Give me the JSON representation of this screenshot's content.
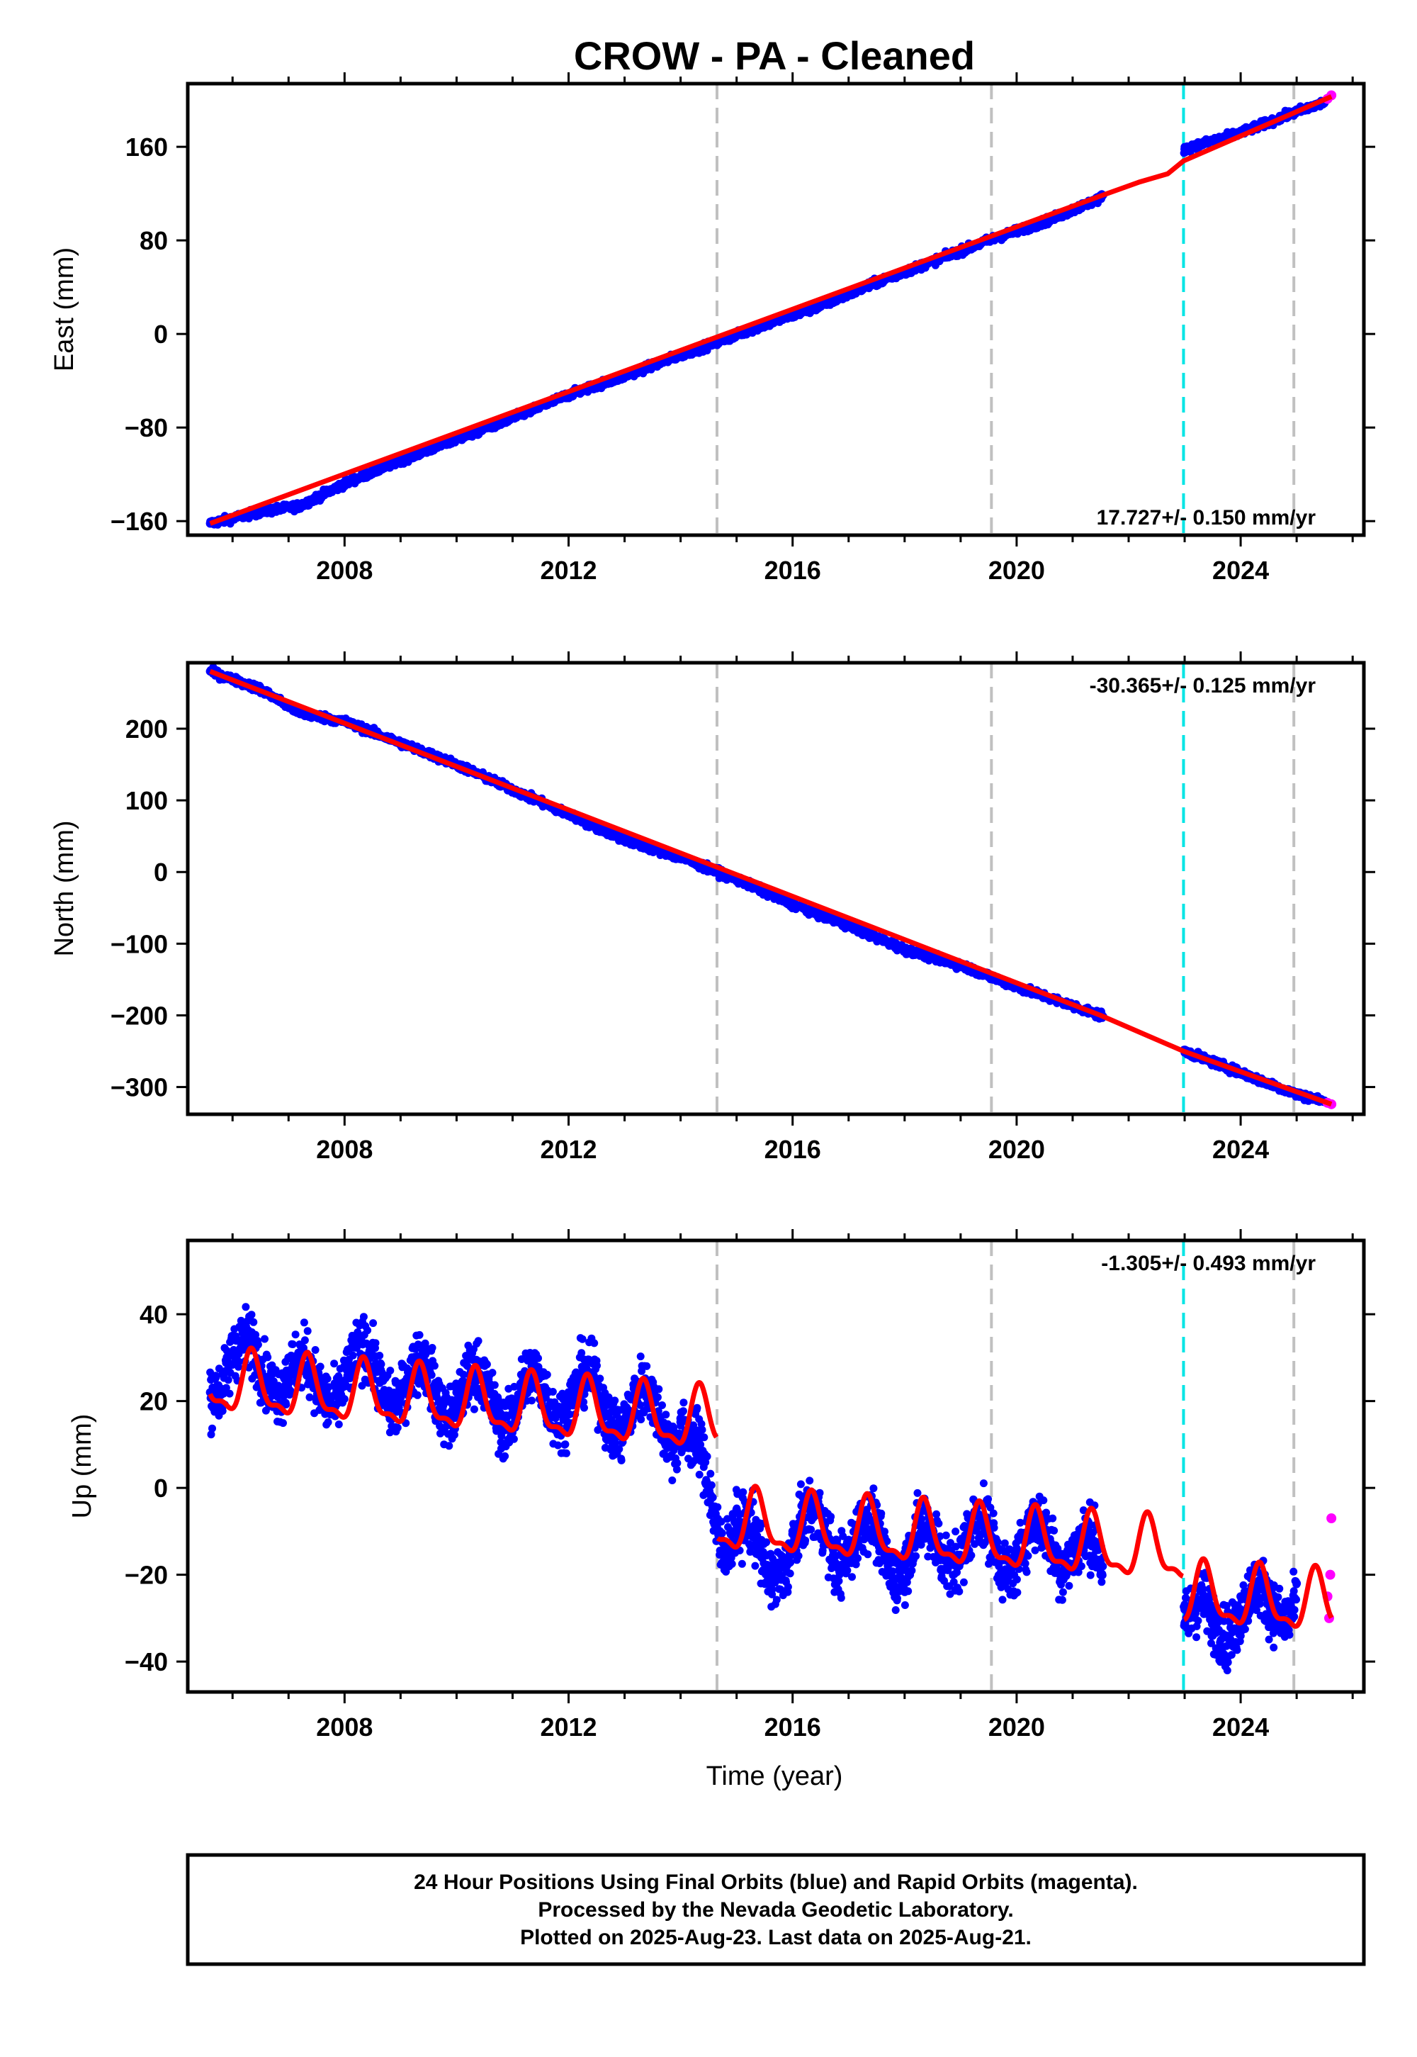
{
  "title": "CROW  - PA - Cleaned",
  "xlabel": "Time (year)",
  "footer": [
    "24 Hour Positions Using Final Orbits (blue) and Rapid Orbits (magenta).",
    "Processed by the Nevada Geodetic Laboratory.",
    "Plotted on 2025-Aug-23. Last data on 2025-Aug-21."
  ],
  "colors": {
    "final_orbits": "#0000ff",
    "rapid_orbits": "#ff00ff",
    "model_fit": "#ff0000",
    "equipment_change": "#c0c0c0",
    "earthquake_offset": "#00e5e5"
  },
  "chart_data": [
    {
      "type": "scatter",
      "ylabel": "East (mm)",
      "rate": "17.727+/- 0.150 mm/yr",
      "xlim": [
        2005.2,
        2026.2
      ],
      "ylim": [
        -172,
        214
      ],
      "xticks": [
        2008,
        2012,
        2016,
        2020,
        2024
      ],
      "yticks": [
        -160,
        -80,
        0,
        80,
        160
      ],
      "grid": false,
      "vlines_gray": [
        2014.65,
        2019.55,
        2024.95
      ],
      "vlines_cyan": [
        2022.98
      ],
      "data_gap": [
        2021.55,
        2022.98
      ],
      "series": [
        {
          "name": "Final Orbits",
          "x": [
            2005.6,
            2006.5,
            2007.2,
            2008.0,
            2009.0,
            2010.0,
            2011.0,
            2012.0,
            2013.0,
            2014.0,
            2014.6,
            2015.5,
            2016.5,
            2017.5,
            2018.5,
            2019.5,
            2020.5,
            2021.5,
            2023.0,
            2024.0,
            2025.0,
            2025.5
          ],
          "y": [
            -162,
            -152,
            -147,
            -128,
            -108,
            -90,
            -72,
            -52,
            -36,
            -18,
            -8,
            8,
            24,
            44,
            62,
            80,
            96,
            116,
            158,
            172,
            190,
            198
          ]
        },
        {
          "name": "Rapid Orbits",
          "x": [
            2025.55,
            2025.62
          ],
          "y": [
            201,
            204
          ]
        }
      ],
      "model": {
        "x": [
          2005.6,
          2021.5,
          2022.2,
          2022.7,
          2022.98,
          2025.62
        ],
        "y": [
          -162,
          118,
          130,
          137,
          148,
          203
        ]
      }
    },
    {
      "type": "scatter",
      "ylabel": "North (mm)",
      "rate": "-30.365+/- 0.125 mm/yr",
      "xlim": [
        2005.2,
        2026.2
      ],
      "ylim": [
        -338,
        292
      ],
      "xticks": [
        2008,
        2012,
        2016,
        2020,
        2024
      ],
      "yticks": [
        -300,
        -200,
        -100,
        0,
        100,
        200
      ],
      "grid": false,
      "vlines_gray": [
        2014.65,
        2019.55,
        2024.95
      ],
      "vlines_cyan": [
        2022.98
      ],
      "data_gap": [
        2021.55,
        2022.98
      ],
      "series": [
        {
          "name": "Final Orbits",
          "x": [
            2005.6,
            2006.5,
            2007.2,
            2008.0,
            2009.0,
            2010.0,
            2011.0,
            2012.0,
            2013.0,
            2014.0,
            2015.0,
            2016.0,
            2017.0,
            2018.0,
            2019.0,
            2020.0,
            2021.5,
            2023.0,
            2024.0,
            2025.0,
            2025.5
          ],
          "y": [
            280,
            255,
            222,
            210,
            180,
            150,
            115,
            80,
            45,
            20,
            -10,
            -45,
            -75,
            -108,
            -130,
            -160,
            -200,
            -250,
            -280,
            -310,
            -320
          ]
        },
        {
          "name": "Rapid Orbits",
          "x": [
            2025.55,
            2025.62
          ],
          "y": [
            -322,
            -324
          ]
        }
      ],
      "model": {
        "x": [
          2005.6,
          2021.5,
          2022.98,
          2025.62
        ],
        "y": [
          280,
          -200,
          -250,
          -324
        ]
      }
    },
    {
      "type": "scatter",
      "ylabel": "Up (mm)",
      "rate": "-1.305+/- 0.493 mm/yr",
      "xlim": [
        2005.2,
        2026.2
      ],
      "ylim": [
        -47,
        57
      ],
      "xticks": [
        2008,
        2012,
        2016,
        2020,
        2024
      ],
      "yticks": [
        -40,
        -20,
        0,
        20,
        40
      ],
      "grid": false,
      "vlines_gray": [
        2014.65,
        2019.55,
        2024.95
      ],
      "vlines_cyan": [
        2022.98
      ],
      "data_gap": [
        2021.55,
        2022.98
      ],
      "series": [
        {
          "name": "Final Orbits",
          "x": [
            2005.6,
            2006.0,
            2006.5,
            2007.0,
            2007.5,
            2008.0,
            2009.0,
            2010.0,
            2011.0,
            2012.0,
            2013.0,
            2014.0,
            2014.7,
            2015.0,
            2015.5,
            2016.0,
            2017.0,
            2018.0,
            2019.0,
            2020.0,
            2021.0,
            2021.5,
            2023.0,
            2023.5,
            2024.0,
            2024.5,
            2025.0
          ],
          "y": [
            22,
            35,
            24,
            30,
            20,
            28,
            24,
            22,
            20,
            22,
            18,
            16,
            -10,
            -5,
            -22,
            -10,
            -12,
            -15,
            -12,
            -14,
            -12,
            -20,
            -28,
            -34,
            -25,
            -30,
            -22
          ]
        },
        {
          "name": "Rapid Orbits",
          "x": [
            2025.55,
            2025.58,
            2025.6,
            2025.62
          ],
          "y": [
            -25,
            -30,
            -20,
            -7
          ]
        }
      ],
      "model": {
        "trend_x": [
          2005.6,
          2014.65,
          2014.66,
          2022.98,
          2022.99,
          2025.62
        ],
        "trend_y": [
          24,
          15,
          -8,
          -15,
          -25,
          -27
        ],
        "annual_amplitude": 6.5
      }
    }
  ]
}
